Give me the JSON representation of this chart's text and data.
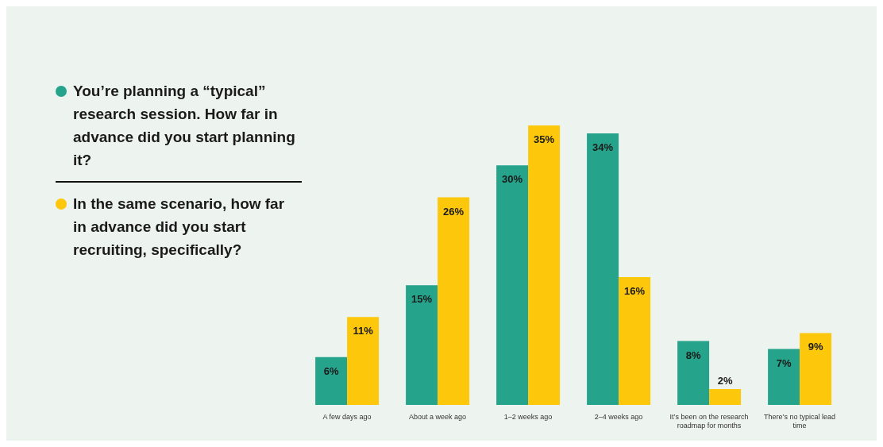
{
  "chart_data": {
    "type": "bar",
    "categories": [
      "A few days ago",
      "About a week ago",
      "1–2 weeks ago",
      "2–4 weeks ago",
      "It’s been on the research roadmap for months",
      "There’s no typical lead time"
    ],
    "series": [
      {
        "name": "You’re planning a “typical” research session. How far in advance did you start planning it?",
        "color": "#26a38b",
        "values": [
          6,
          15,
          30,
          34,
          8,
          7
        ],
        "value_labels": [
          "6%",
          "15%",
          "30%",
          "34%",
          "8%",
          "7%"
        ]
      },
      {
        "name": "In the same scenario, how far in advance did you start recruiting, specifically?",
        "color": "#fdc70c",
        "values": [
          11,
          26,
          35,
          16,
          2,
          9
        ],
        "value_labels": [
          "11%",
          "26%",
          "35%",
          "16%",
          "2%",
          "9%"
        ]
      }
    ],
    "legend": "left"
  }
}
